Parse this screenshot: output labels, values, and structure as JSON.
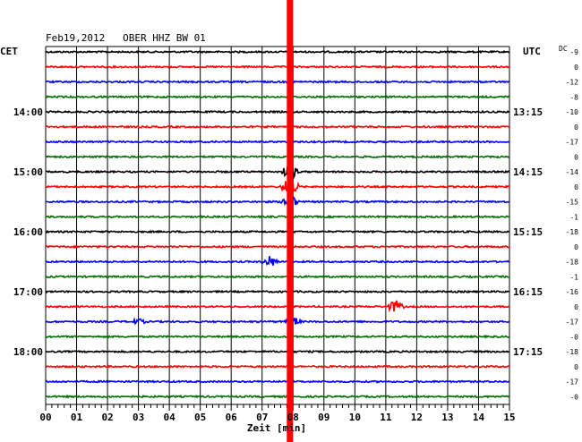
{
  "chart_data": {
    "type": "line",
    "title": "Feb19,2012   OBER HHZ BW 01",
    "left_axis_label": "CET",
    "right_axis_label": "UTC",
    "dc_label": "DC",
    "xlabel": "Zeit [min]",
    "xlim": [
      0,
      15
    ],
    "x_ticks": [
      "00",
      "01",
      "02",
      "03",
      "04",
      "05",
      "06",
      "07",
      "08",
      "09",
      "10",
      "11",
      "12",
      "13",
      "14",
      "15"
    ],
    "left_hour_labels": [
      {
        "trace": 4,
        "label": "14:00"
      },
      {
        "trace": 8,
        "label": "15:00"
      },
      {
        "trace": 12,
        "label": "16:00"
      },
      {
        "trace": 16,
        "label": "17:00"
      },
      {
        "trace": 20,
        "label": "18:00"
      }
    ],
    "right_hour_labels": [
      {
        "trace": 4,
        "label": "13:15"
      },
      {
        "trace": 8,
        "label": "14:15"
      },
      {
        "trace": 12,
        "label": "15:15"
      },
      {
        "trace": 16,
        "label": "16:15"
      },
      {
        "trace": 20,
        "label": "17:15"
      }
    ],
    "dc_offsets": [
      "-9",
      "0",
      "-12",
      "-8",
      "-10",
      "0",
      "-17",
      "0",
      "-14",
      "0",
      "-15",
      "-1",
      "-18",
      "0",
      "-18",
      "-1",
      "-16",
      "0",
      "-17",
      "-0",
      "-18",
      "0",
      "-17",
      "-0"
    ],
    "trace_colors": [
      "#000000",
      "#ff0000",
      "#0000ff",
      "#007000"
    ],
    "marker_minute": 7.9,
    "marker_color": "#ff0000",
    "events": [
      {
        "trace": 8,
        "minute": 7.9,
        "amplitude": 10
      },
      {
        "trace": 9,
        "minute": 7.9,
        "amplitude": 14
      },
      {
        "trace": 10,
        "minute": 7.9,
        "amplitude": 8
      },
      {
        "trace": 14,
        "minute": 7.25,
        "amplitude": 7
      },
      {
        "trace": 17,
        "minute": 11.3,
        "amplitude": 8
      },
      {
        "trace": 18,
        "minute": 3.0,
        "amplitude": 4
      },
      {
        "trace": 18,
        "minute": 8.0,
        "amplitude": 6
      }
    ]
  }
}
